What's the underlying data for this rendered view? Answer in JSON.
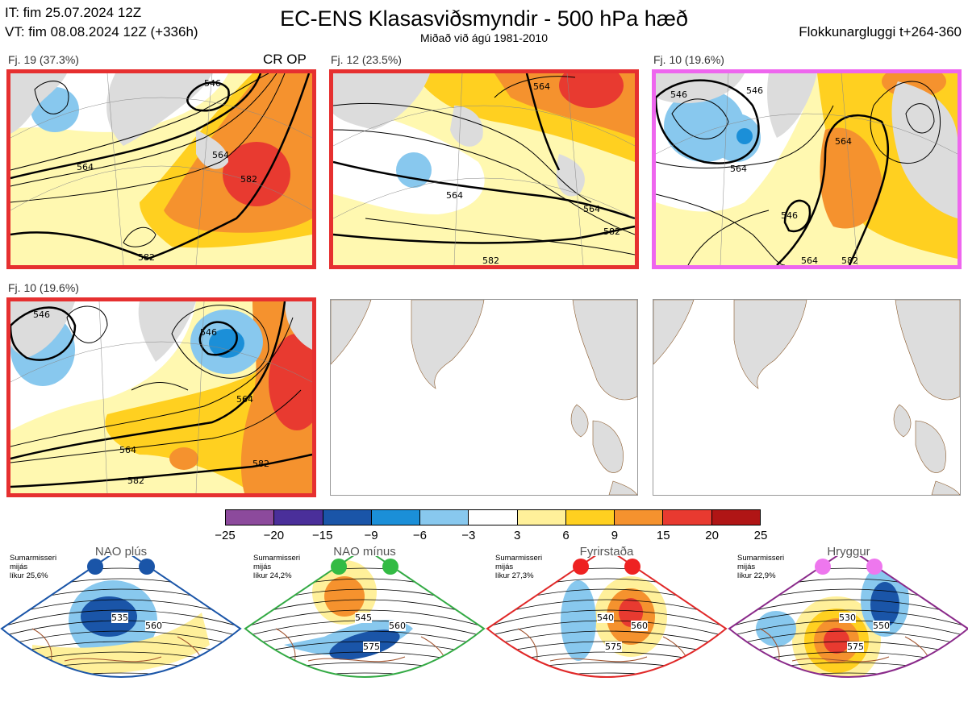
{
  "header": {
    "it": "IT: fim 25.07.2024 12Z",
    "vt": "VT: fim 08.08.2024 12Z  (+336h)",
    "title": "EC-ENS Klasasviðsmyndir - 500 hPa hæð",
    "subtitle": "Miðað við ágú 1981-2010",
    "window": "Flokkunargluggi t+264-360"
  },
  "clusters": [
    {
      "label": "Fj. 19 (37.3%)",
      "extra": "CR OP",
      "border": "#e63030",
      "contours": [
        "546",
        "564",
        "582",
        "582",
        "564"
      ]
    },
    {
      "label": "Fj. 12 (23.5%)",
      "extra": "",
      "border": "#e63030",
      "contours": [
        "564",
        "564",
        "564",
        "582",
        "582"
      ]
    },
    {
      "label": "Fj. 10 (19.6%)",
      "extra": "",
      "border": "#ee66ee",
      "contours": [
        "546",
        "546",
        "564",
        "564",
        "546",
        "564",
        "582"
      ]
    },
    {
      "label": "Fj. 10 (19.6%)",
      "extra": "",
      "border": "#e63030",
      "contours": [
        "546",
        "546",
        "564",
        "564",
        "582",
        "582"
      ]
    }
  ],
  "colorbar": {
    "ticks": [
      "−25",
      "−20",
      "−15",
      "−9",
      "−6",
      "−3",
      "3",
      "6",
      "9",
      "15",
      "20",
      "25"
    ],
    "colors": [
      "#8c4a9c",
      "#4a2f9a",
      "#1a55a8",
      "#1b8fd8",
      "#88c8ee",
      "#ffffff",
      "#fff09a",
      "#ffd020",
      "#f5922e",
      "#e83a30",
      "#b01515"
    ]
  },
  "regimes": [
    {
      "title": "NAO plús",
      "info": [
        "Sumarmisseri",
        "mijás",
        "líkur 25,6%"
      ],
      "color": "#1a55a8",
      "dot": "#1a55a8",
      "contours": [
        "535",
        "560"
      ]
    },
    {
      "title": "NAO mínus",
      "info": [
        "Sumarmisseri",
        "mijás",
        "líkur 24,2%"
      ],
      "color": "#33aa44",
      "dot": "#33bb44",
      "contours": [
        "545",
        "560",
        "575"
      ]
    },
    {
      "title": "Fyrirstaða",
      "info": [
        "Sumarmisseri",
        "mijás",
        "líkur 27,3%"
      ],
      "color": "#e02828",
      "dot": "#ee2222",
      "contours": [
        "540",
        "560",
        "575"
      ]
    },
    {
      "title": "Hryggur",
      "info": [
        "Sumarmisseri",
        "mijás",
        "líkur 22,9%"
      ],
      "color": "#8a2a8a",
      "dot": "#ee77ee",
      "contours": [
        "530",
        "550",
        "575"
      ]
    }
  ]
}
